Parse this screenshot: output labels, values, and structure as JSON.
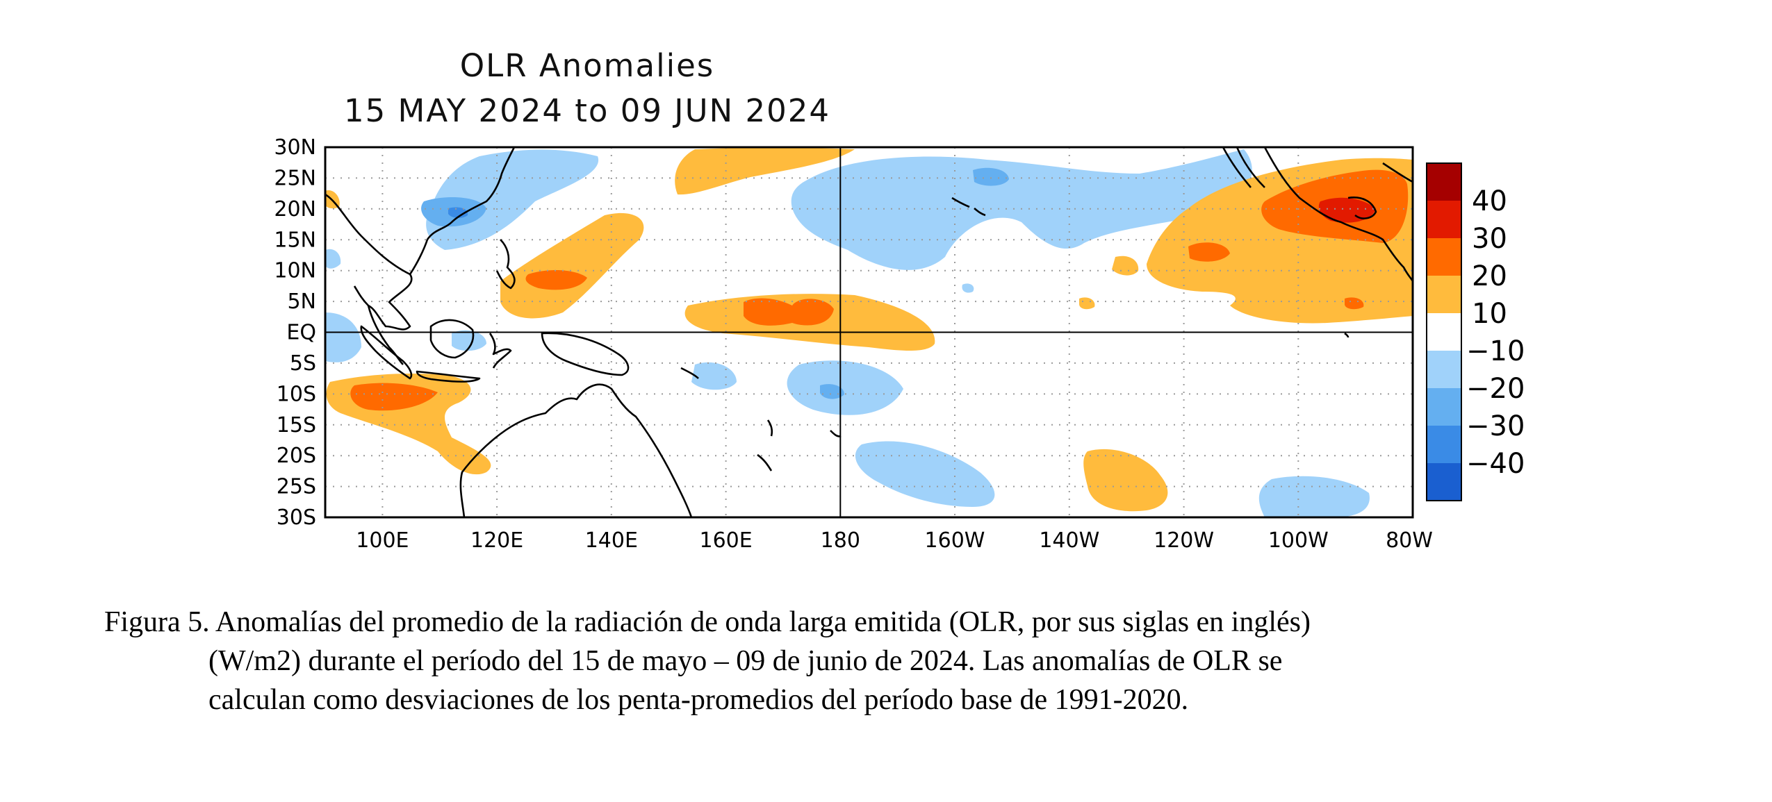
{
  "map": {
    "title": "OLR Anomalies",
    "subtitle": "15 MAY 2024 to 09 JUN 2024",
    "lat_labels": [
      "30N",
      "25N",
      "20N",
      "15N",
      "10N",
      "5N",
      "EQ",
      "5S",
      "10S",
      "15S",
      "20S",
      "25S",
      "30S"
    ],
    "lon_labels": [
      "100E",
      "120E",
      "140E",
      "160E",
      "180",
      "160W",
      "140W",
      "120W",
      "100W",
      "80W"
    ],
    "lat_range": [
      -30,
      30
    ],
    "lon_range": [
      90,
      280
    ],
    "grid": "dotted",
    "reference_lines": [
      "EQ",
      "180"
    ]
  },
  "legend": {
    "labels": [
      "40",
      "30",
      "20",
      "10",
      "−10",
      "−20",
      "−30",
      "−40"
    ],
    "colors": {
      "pos40": "#a50000",
      "pos30": "#e21a00",
      "pos20": "#ff6a00",
      "pos10": "#ffbb3d",
      "neutral": "#ffffff",
      "neg10": "#a0d2fa",
      "neg20": "#64aff0",
      "neg30": "#3a8be6",
      "neg40": "#1a5fd0"
    }
  },
  "caption": {
    "line1": "Figura 5. Anomalías del promedio de la radiación de onda larga emitida (OLR, por sus siglas en inglés)",
    "line2": "(W/m2) durante el período del 15 de mayo – 09 de junio de 2024.  Las anomalías de OLR se",
    "line3": "calculan como desviaciones de los penta-promedios del período base de 1991-2020."
  }
}
